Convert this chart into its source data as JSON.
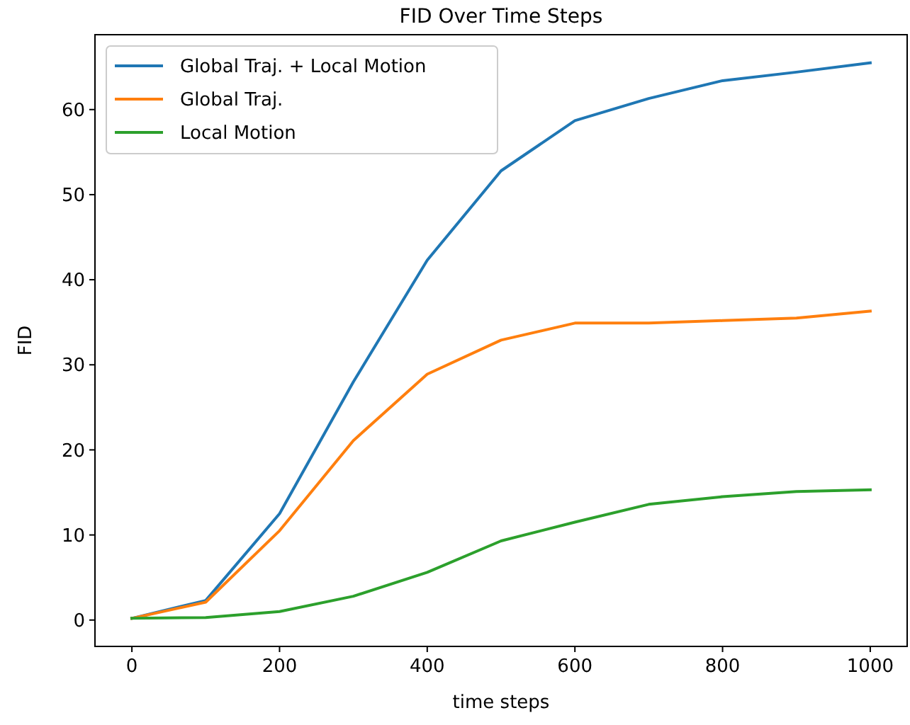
{
  "chart_data": {
    "type": "line",
    "title": "FID Over Time Steps",
    "xlabel": "time steps",
    "ylabel": "FID",
    "x": [
      0,
      100,
      200,
      300,
      400,
      500,
      600,
      700,
      800,
      900,
      1000
    ],
    "series": [
      {
        "name": "Global Traj. + Local Motion",
        "color": "#1f77b4",
        "values": [
          0.2,
          2.3,
          12.5,
          28,
          42.3,
          52.8,
          58.7,
          61.3,
          63.4,
          64.4,
          65.5
        ]
      },
      {
        "name": "Global Traj.",
        "color": "#ff7f0e",
        "values": [
          0.2,
          2.1,
          10.5,
          21.1,
          28.9,
          32.9,
          34.9,
          34.9,
          35.2,
          35.5,
          36.3
        ]
      },
      {
        "name": "Local Motion",
        "color": "#2ca02c",
        "values": [
          0.2,
          0.3,
          1.0,
          2.8,
          5.6,
          9.3,
          11.5,
          13.6,
          14.5,
          15.1,
          15.3
        ]
      }
    ],
    "xlim": [
      -50,
      1050
    ],
    "ylim": [
      -3.1,
      68.8
    ],
    "xticks": [
      0,
      200,
      400,
      600,
      800,
      1000
    ],
    "yticks": [
      0,
      10,
      20,
      30,
      40,
      50,
      60
    ],
    "legend": "top left",
    "grid": false,
    "marker": "none",
    "line_style": "solid"
  }
}
